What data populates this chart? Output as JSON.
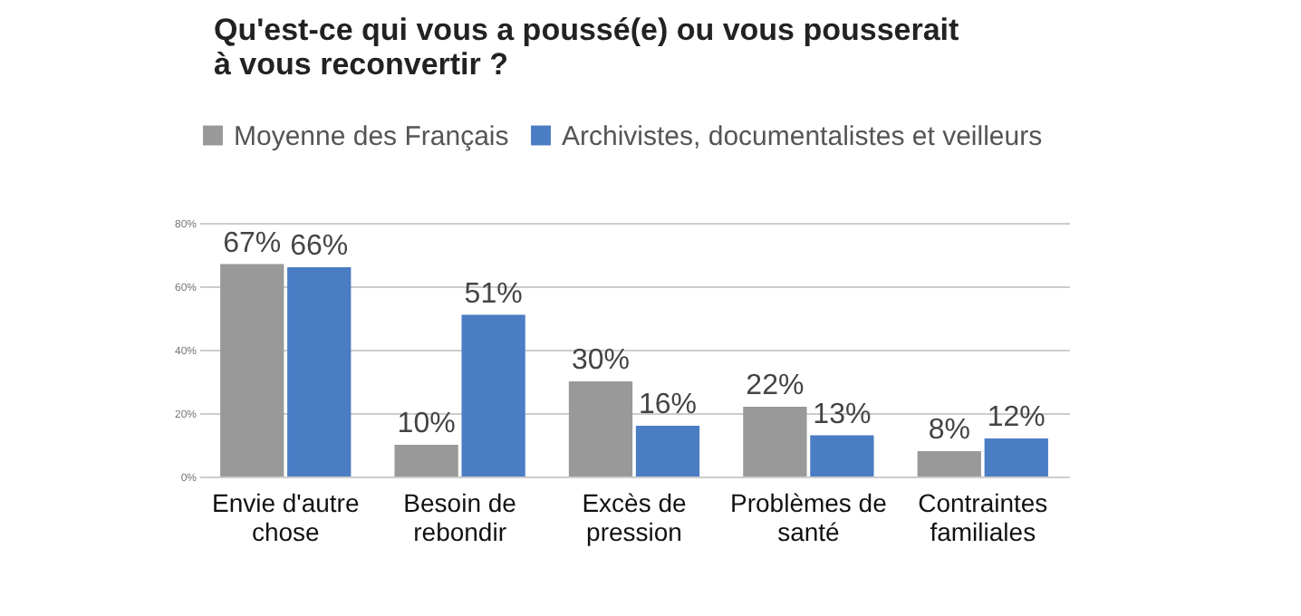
{
  "chart_data": {
    "type": "bar",
    "title": "Qu'est-ce qui vous a poussé(e) ou vous pousserait à vous reconvertir ?",
    "categories": [
      "Envie d'autre chose",
      "Besoin de rebondir",
      "Excès de pression",
      "Problèmes de santé",
      "Contraintes familiales"
    ],
    "series": [
      {
        "name": "Moyenne des Français",
        "color": "#999999",
        "values": [
          67,
          10,
          30,
          22,
          8
        ],
        "value_labels": [
          "67%",
          "10%",
          "30%",
          "22%",
          "8%"
        ]
      },
      {
        "name": "Archivistes, documentalistes et veilleurs",
        "color": "#4a7dc4",
        "values": [
          66,
          51,
          16,
          13,
          12
        ],
        "value_labels": [
          "66%",
          "51%",
          "16%",
          "13%",
          "12%"
        ]
      }
    ],
    "ylim": [
      0,
      80
    ],
    "yticks": [
      {
        "value": 0,
        "label": "0%"
      },
      {
        "value": 20,
        "label": "20%"
      },
      {
        "value": 40,
        "label": "40%"
      },
      {
        "value": 60,
        "label": "60%"
      },
      {
        "value": 80,
        "label": "80%"
      }
    ],
    "grid": "y",
    "legend": "top left"
  }
}
